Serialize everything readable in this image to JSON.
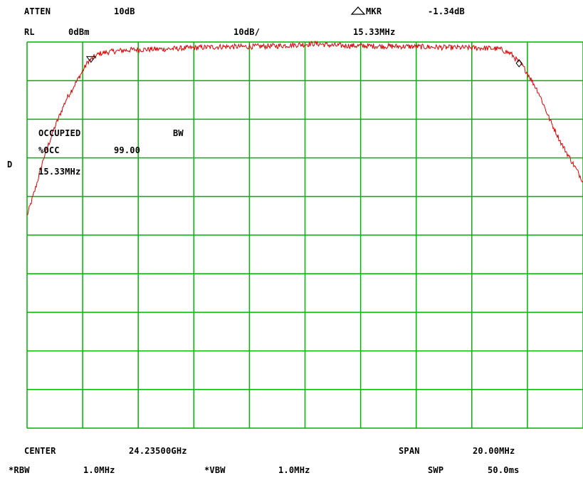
{
  "header": {
    "atten_label": "ATTEN",
    "atten_value": "10dB",
    "marker_label": "MKR",
    "marker_value": "-1.34dB",
    "rl_label": "RL",
    "rl_value": "0dBm",
    "scale": "10dB/",
    "marker_freq": "15.33MHz"
  },
  "side_label": "D",
  "measurement": {
    "title_left": "OCCUPIED",
    "title_right": "BW",
    "pct_label": "%OCC",
    "pct_value": "99.00",
    "bandwidth": "15.33MHz"
  },
  "footer": {
    "center_label": "CENTER",
    "center_value": "24.23500GHz",
    "span_label": "SPAN",
    "span_value": "20.00MHz",
    "rbw_label": "*RBW",
    "rbw_value": "1.0MHz",
    "vbw_label": "*VBW",
    "vbw_value": "1.0MHz",
    "swp_label": "SWP",
    "swp_value": "50.0ms"
  },
  "colors": {
    "grid": "#00b400",
    "trace": "#e00000",
    "text": "#000000",
    "background": "#ffffff"
  },
  "chart_data": {
    "type": "line",
    "x_divisions": 10,
    "y_divisions": 10,
    "xlim": [
      -10,
      10
    ],
    "ylim": [
      -100,
      0
    ],
    "xunit": "MHz offset from center",
    "yunit": "dBm",
    "grid": true,
    "series": [
      {
        "x": [
          -10.0,
          -9.7,
          -9.4,
          -9.0,
          -8.6,
          -8.2,
          -7.8,
          -7.4,
          -7.0,
          -6.6,
          -6.2,
          -5.0,
          -4.0,
          -3.0,
          -2.0,
          -1.0,
          0.0,
          0.4,
          1.0,
          2.0,
          3.0,
          4.0,
          5.0,
          6.0,
          6.6,
          7.0,
          7.4,
          7.8,
          8.0,
          8.4,
          8.8,
          9.2,
          9.6,
          10.0
        ],
        "y": [
          -45.0,
          -38.0,
          -30.0,
          -22.0,
          -15.0,
          -10.0,
          -5.0,
          -3.0,
          -2.5,
          -2.2,
          -2.0,
          -1.8,
          -1.5,
          -1.2,
          -1.2,
          -1.0,
          -0.6,
          -0.4,
          -0.9,
          -1.0,
          -1.1,
          -1.2,
          -1.4,
          -1.5,
          -1.6,
          -1.8,
          -3.0,
          -6.0,
          -8.0,
          -13.0,
          -20.0,
          -26.0,
          -31.0,
          -36.0
        ]
      }
    ],
    "markers": [
      {
        "type": "delta",
        "x": -7.7,
        "y": -4.5
      },
      {
        "type": "reference",
        "x": 7.7,
        "y": -5.5
      }
    ]
  }
}
